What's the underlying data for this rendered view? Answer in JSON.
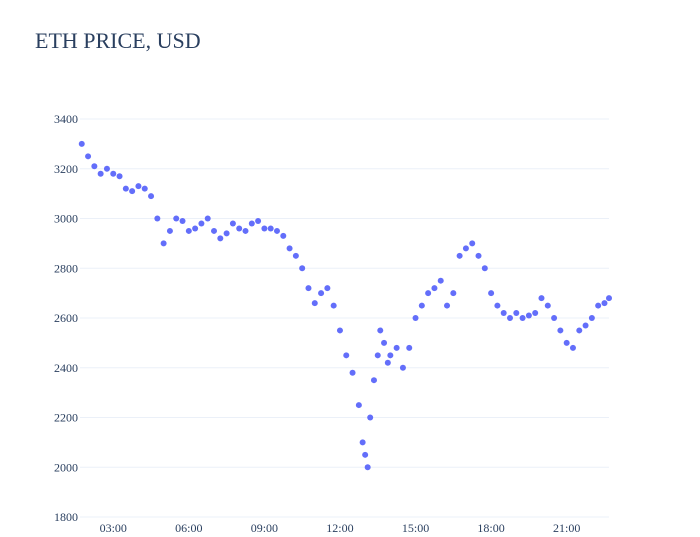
{
  "chart_data": {
    "type": "scatter",
    "title": "ETH PRICE, USD",
    "xlabel": "",
    "ylabel": "",
    "x_ticks": [
      "03:00",
      "06:00",
      "09:00",
      "12:00",
      "15:00",
      "18:00",
      "21:00"
    ],
    "y_ticks": [
      1800,
      2000,
      2200,
      2400,
      2600,
      2800,
      3000,
      3200,
      3400
    ],
    "xlim": [
      1.68,
      22.68
    ],
    "ylim": [
      1800,
      3400
    ],
    "grid": true,
    "legend": "none",
    "marker_color": "#636efa",
    "series": [
      {
        "x": [
          1.75,
          2.0,
          2.25,
          2.5,
          2.75,
          3.0,
          3.25,
          3.5,
          3.75,
          4.0,
          4.25,
          4.5,
          4.75,
          5.0,
          5.25,
          5.5,
          5.75,
          6.0,
          6.25,
          6.5,
          6.75,
          7.0,
          7.25,
          7.5,
          7.75,
          8.0,
          8.25,
          8.5,
          8.75,
          9.0,
          9.25,
          9.5,
          9.75,
          10.0,
          10.25,
          10.5,
          10.75,
          11.0,
          11.25,
          11.5,
          11.75,
          12.0,
          12.25,
          12.5,
          12.75,
          12.9,
          13.0,
          13.1,
          13.2,
          13.35,
          13.5,
          13.6,
          13.75,
          13.9,
          14.0,
          14.25,
          14.5,
          14.75,
          15.0,
          15.25,
          15.5,
          15.75,
          16.0,
          16.25,
          16.5,
          16.75,
          17.0,
          17.25,
          17.5,
          17.75,
          18.0,
          18.25,
          18.5,
          18.75,
          19.0,
          19.25,
          19.5,
          19.75,
          20.0,
          20.25,
          20.5,
          20.75,
          21.0,
          21.25,
          21.5,
          21.75,
          22.0,
          22.25,
          22.5,
          22.68
        ],
        "y": [
          3300,
          3250,
          3210,
          3180,
          3200,
          3180,
          3170,
          3120,
          3110,
          3130,
          3120,
          3090,
          3000,
          2900,
          2950,
          3000,
          2990,
          2950,
          2960,
          2980,
          3000,
          2950,
          2920,
          2940,
          2980,
          2960,
          2950,
          2980,
          2990,
          2960,
          2960,
          2950,
          2930,
          2880,
          2850,
          2800,
          2720,
          2660,
          2700,
          2720,
          2650,
          2550,
          2450,
          2380,
          2250,
          2100,
          2050,
          2000,
          2200,
          2350,
          2450,
          2550,
          2500,
          2420,
          2450,
          2480,
          2400,
          2480,
          2600,
          2650,
          2700,
          2720,
          2750,
          2650,
          2700,
          2850,
          2880,
          2900,
          2850,
          2800,
          2700,
          2650,
          2620,
          2600,
          2620,
          2600,
          2610,
          2620,
          2680,
          2650,
          2600,
          2550,
          2500,
          2480,
          2550,
          2570,
          2600,
          2650,
          2660,
          2680
        ]
      }
    ]
  }
}
